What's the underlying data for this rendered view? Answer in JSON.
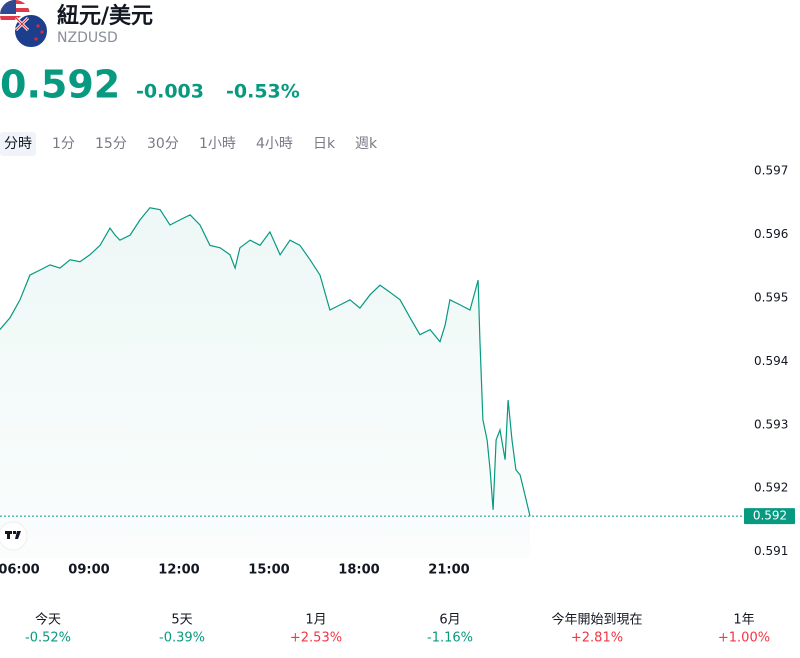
{
  "header": {
    "title": "紐元/美元",
    "symbol": "NZDUSD"
  },
  "quote": {
    "price": "0.592",
    "change": "-0.003",
    "change_percent": "-0.53%"
  },
  "tabs": [
    "分時",
    "1分",
    "15分",
    "30分",
    "1小時",
    "4小時",
    "日k",
    "週k"
  ],
  "chart_data": {
    "type": "line",
    "color": "#089981",
    "x": [
      6.03,
      6.37,
      6.7,
      7.03,
      7.37,
      7.7,
      8.03,
      8.37,
      8.7,
      9.03,
      9.37,
      9.7,
      9.87,
      10.03,
      10.37,
      10.7,
      11.03,
      11.37,
      11.7,
      12.03,
      12.37,
      12.7,
      13.03,
      13.37,
      13.7,
      13.87,
      14.03,
      14.37,
      14.7,
      15.03,
      15.37,
      15.7,
      16.03,
      16.37,
      16.7,
      17.03,
      17.37,
      17.7,
      18.03,
      18.37,
      18.7,
      19.03,
      19.37,
      19.7,
      20.03,
      20.37,
      20.7,
      20.87,
      21.03,
      21.37,
      21.7,
      21.97,
      22.03,
      22.13,
      22.27,
      22.37,
      22.47,
      22.57,
      22.7,
      22.87,
      22.97,
      23.1,
      23.23,
      23.37,
      23.53,
      23.7
    ],
    "values": [
      0.5945,
      0.59469,
      0.59497,
      0.59536,
      0.59544,
      0.59552,
      0.59547,
      0.5956,
      0.59557,
      0.59568,
      0.59583,
      0.5961,
      0.59599,
      0.59591,
      0.59599,
      0.59623,
      0.59642,
      0.59639,
      0.59615,
      0.59623,
      0.59631,
      0.59615,
      0.59583,
      0.59579,
      0.59568,
      0.59547,
      0.59579,
      0.59591,
      0.59583,
      0.59604,
      0.59568,
      0.59591,
      0.59583,
      0.5956,
      0.59536,
      0.59481,
      0.59489,
      0.59497,
      0.59484,
      0.59505,
      0.5952,
      0.59509,
      0.59497,
      0.59469,
      0.59442,
      0.5945,
      0.59431,
      0.59457,
      0.59497,
      0.59489,
      0.59481,
      0.59528,
      0.59434,
      0.59308,
      0.59276,
      0.59229,
      0.59166,
      0.59276,
      0.59292,
      0.59245,
      0.59339,
      0.59276,
      0.59229,
      0.59221,
      0.5919,
      0.59156
    ],
    "xlim": [
      6,
      30.7
    ],
    "xticks": [
      {
        "value": 6,
        "label": "06:00"
      },
      {
        "value": 9,
        "label": "09:00"
      },
      {
        "value": 12,
        "label": "12:00"
      },
      {
        "value": 15,
        "label": "15:00"
      },
      {
        "value": 18,
        "label": "18:00"
      },
      {
        "value": 21,
        "label": "21:00"
      }
    ],
    "ylim": [
      0.5909,
      0.5973
    ],
    "yticks": [
      0.597,
      0.596,
      0.595,
      0.594,
      0.593,
      0.592,
      0.591
    ],
    "last_price": {
      "value": 0.59156,
      "label": "0.592"
    },
    "grid": false
  },
  "performance": [
    {
      "label": "今天",
      "value": "-0.52%"
    },
    {
      "label": "5天",
      "value": "-0.39%"
    },
    {
      "label": "1月",
      "value": "+2.53%"
    },
    {
      "label": "6月",
      "value": "-1.16%"
    },
    {
      "label": "今年開始到現在",
      "value": "+2.81%"
    },
    {
      "label": "1年",
      "value": "+1.00%"
    }
  ]
}
